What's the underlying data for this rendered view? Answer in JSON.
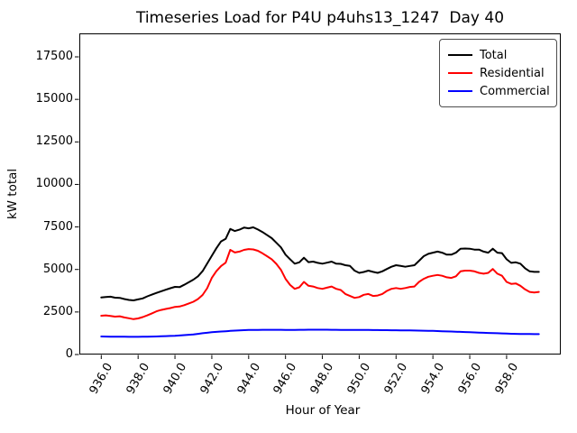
{
  "title": "Timeseries Load for P4U p4uhs13_1247  Day 40",
  "axes": {
    "xlabel": "Hour of Year",
    "ylabel": "kW total"
  },
  "chart_data": {
    "type": "line",
    "title": "Timeseries Load for P4U p4uhs13_1247  Day 40",
    "xlabel": "Hour of Year",
    "ylabel": "kW total",
    "grid": false,
    "legend_position": "upper right",
    "xlim": [
      934.81,
      960.94
    ],
    "ylim": [
      0,
      18880
    ],
    "xticks": [
      936,
      938,
      940,
      942,
      944,
      946,
      948,
      950,
      952,
      954,
      956,
      958
    ],
    "xtick_labels": [
      "936.0",
      "938.0",
      "940.0",
      "942.0",
      "944.0",
      "946.0",
      "948.0",
      "950.0",
      "952.0",
      "954.0",
      "956.0",
      "958.0"
    ],
    "yticks": [
      0,
      2500,
      5000,
      7500,
      10000,
      12500,
      15000,
      17500
    ],
    "ytick_labels": [
      "0",
      "2500",
      "5000",
      "7500",
      "10000",
      "12500",
      "15000",
      "17500"
    ],
    "x_start": 936.0,
    "x_step": 0.25,
    "x_unit": "hour of year",
    "y_unit": "kW",
    "series": [
      {
        "name": "Total",
        "color": "#000000",
        "values": [
          3350,
          3380,
          3400,
          3340,
          3330,
          3260,
          3210,
          3180,
          3240,
          3300,
          3420,
          3520,
          3620,
          3720,
          3810,
          3900,
          3980,
          3960,
          4100,
          4250,
          4400,
          4600,
          4900,
          5350,
          5800,
          6250,
          6650,
          6800,
          7380,
          7260,
          7340,
          7460,
          7420,
          7480,
          7350,
          7200,
          7020,
          6840,
          6570,
          6300,
          5870,
          5600,
          5340,
          5420,
          5690,
          5430,
          5460,
          5390,
          5340,
          5400,
          5460,
          5340,
          5330,
          5250,
          5210,
          4930,
          4800,
          4850,
          4930,
          4860,
          4800,
          4890,
          5030,
          5160,
          5250,
          5210,
          5160,
          5210,
          5250,
          5510,
          5780,
          5920,
          5990,
          6050,
          5990,
          5870,
          5870,
          5990,
          6220,
          6230,
          6220,
          6170,
          6170,
          6050,
          5990,
          6220,
          5990,
          5960,
          5600,
          5390,
          5420,
          5340,
          5070,
          4890,
          4860,
          4860
        ]
      },
      {
        "name": "Residential",
        "color": "#ff0000",
        "values": [
          2280,
          2300,
          2270,
          2230,
          2250,
          2180,
          2130,
          2080,
          2120,
          2200,
          2300,
          2420,
          2540,
          2620,
          2680,
          2730,
          2800,
          2820,
          2900,
          3000,
          3100,
          3260,
          3500,
          3900,
          4500,
          4900,
          5200,
          5400,
          6150,
          6000,
          6050,
          6150,
          6200,
          6180,
          6100,
          5950,
          5780,
          5600,
          5330,
          4980,
          4450,
          4090,
          3860,
          3950,
          4270,
          4040,
          4000,
          3910,
          3860,
          3930,
          4000,
          3860,
          3790,
          3560,
          3440,
          3330,
          3380,
          3510,
          3560,
          3440,
          3470,
          3560,
          3740,
          3860,
          3910,
          3860,
          3910,
          3970,
          4000,
          4270,
          4450,
          4570,
          4630,
          4680,
          4630,
          4540,
          4500,
          4600,
          4890,
          4930,
          4930,
          4890,
          4800,
          4750,
          4800,
          5030,
          4750,
          4630,
          4270,
          4150,
          4180,
          4040,
          3830,
          3680,
          3650,
          3680
        ]
      },
      {
        "name": "Commercial",
        "color": "#0000ff",
        "values": [
          1060,
          1055,
          1050,
          1048,
          1045,
          1043,
          1040,
          1040,
          1040,
          1045,
          1050,
          1055,
          1060,
          1070,
          1080,
          1090,
          1100,
          1120,
          1140,
          1160,
          1180,
          1215,
          1250,
          1280,
          1310,
          1330,
          1350,
          1370,
          1390,
          1405,
          1420,
          1430,
          1440,
          1445,
          1450,
          1452,
          1455,
          1455,
          1455,
          1452,
          1450,
          1450,
          1450,
          1452,
          1455,
          1458,
          1460,
          1460,
          1460,
          1458,
          1455,
          1452,
          1450,
          1448,
          1445,
          1442,
          1440,
          1440,
          1440,
          1438,
          1435,
          1432,
          1430,
          1428,
          1425,
          1422,
          1420,
          1415,
          1410,
          1405,
          1400,
          1395,
          1390,
          1380,
          1370,
          1360,
          1350,
          1340,
          1330,
          1320,
          1310,
          1300,
          1290,
          1280,
          1270,
          1260,
          1250,
          1240,
          1230,
          1222,
          1215,
          1210,
          1205,
          1202,
          1200,
          1200
        ]
      }
    ]
  }
}
